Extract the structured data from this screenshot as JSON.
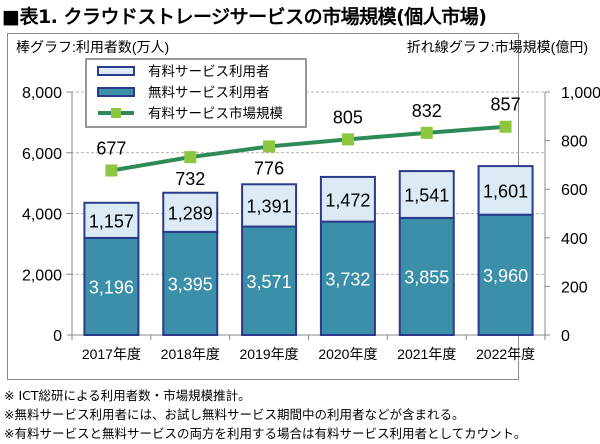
{
  "title": "■表1. クラウドストレージサービスの市場規模(個人市場)",
  "chart_data": {
    "type": "bar",
    "title": "■表1. クラウドストレージサービスの市場規模(個人市場)",
    "left_axis_label": "棒グラフ:利用者数(万人)",
    "right_axis_label": "折れ線グラフ:市場規模(億円)",
    "categories": [
      "2017年度",
      "2018年度",
      "2019年度",
      "2020年度",
      "2021年度",
      "2022年度"
    ],
    "series": [
      {
        "name": "無料サービス利用者",
        "type": "bar",
        "stack": "users",
        "axis": "left",
        "color": "#3b8fa8",
        "label_color": "#ffffff",
        "values": [
          3196,
          3395,
          3571,
          3732,
          3855,
          3960
        ],
        "labels": [
          "3,196",
          "3,395",
          "3,571",
          "3,732",
          "3,855",
          "3,960"
        ]
      },
      {
        "name": "有料サービス利用者",
        "type": "bar",
        "stack": "users",
        "axis": "left",
        "color": "#dbeaf5",
        "label_color": "#000000",
        "values": [
          1157,
          1289,
          1391,
          1472,
          1541,
          1601
        ],
        "labels": [
          "1,157",
          "1,289",
          "1,391",
          "1,472",
          "1,541",
          "1,601"
        ]
      },
      {
        "name": "有料サービス市場規模",
        "type": "line",
        "axis": "right",
        "color": "#2e8b57",
        "marker_color": "#8dc63f",
        "values": [
          677,
          732,
          776,
          805,
          832,
          857
        ],
        "labels": [
          "677",
          "732",
          "776",
          "805",
          "832",
          "857"
        ]
      }
    ],
    "bar_border_color": "#2b3a8a",
    "legend": {
      "placement": "top-left",
      "entries": [
        "有料サービス利用者",
        "無料サービス利用者",
        "有料サービス市場規模"
      ]
    },
    "ylim_left": [
      0,
      8000
    ],
    "yticks_left": [
      0,
      2000,
      4000,
      6000,
      8000
    ],
    "ytick_labels_left": [
      "0",
      "2,000",
      "4,000",
      "6,000",
      "8,000"
    ],
    "ylim_right": [
      0,
      1000
    ],
    "yticks_right": [
      0,
      200,
      400,
      600,
      800,
      1000
    ],
    "ytick_labels_right": [
      "0",
      "200",
      "400",
      "600",
      "800",
      "1,000"
    ],
    "grid": true
  },
  "notes": [
    "※ ICT総研による利用者数・市場規模推計。",
    "※無料サービス利用者には、お試し無料サービス期間中の利用者などが含まれる。",
    "※有料サービスと無料サービスの両方を利用する場合は有料サービス利用者としてカウント。"
  ]
}
